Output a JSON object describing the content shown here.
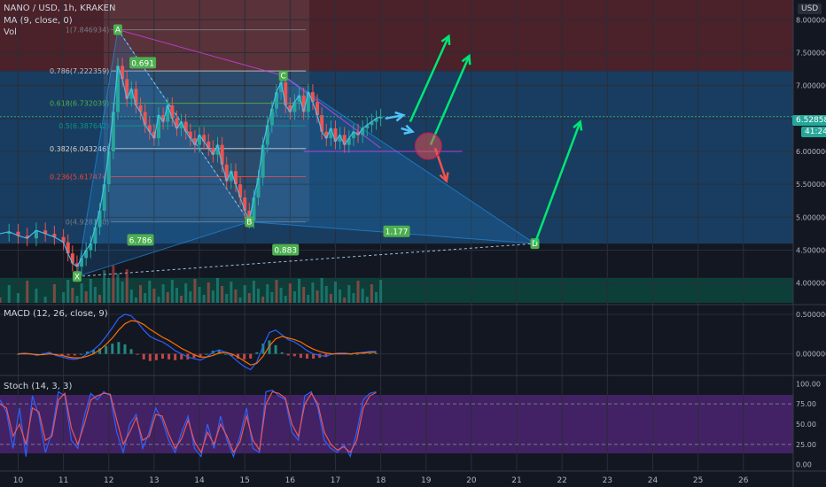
{
  "header": {
    "symbol": "NANO / USD, 1h, KRAKEN",
    "ma_label": "MA (9, close, 0)",
    "vol_label": "Vol",
    "currency": "USD",
    "macd_label": "MACD (12, 26, close, 9)",
    "stoch_label": "Stoch (14, 3, 3)"
  },
  "price_badge": {
    "value": "6.528589",
    "countdown": "41:24"
  },
  "colors": {
    "bull": "#26a69a",
    "bear": "#ef5350",
    "macd": "#2962ff",
    "signal": "#ff6d00",
    "stoch_k": "#2962ff",
    "stoch_d": "#ef5350",
    "arrow": "#00e676"
  },
  "chart_data": {
    "type": "line",
    "price_axis": {
      "ticks": [
        "8.000000",
        "7.500000",
        "7.000000",
        "6.500000",
        "6.000000",
        "5.500000",
        "5.000000",
        "4.500000",
        "4.000000"
      ],
      "values": [
        8.0,
        7.5,
        7.0,
        6.5,
        6.0,
        5.5,
        5.0,
        4.5,
        4.0
      ],
      "ylim": [
        3.7,
        8.3
      ]
    },
    "macd_axis": {
      "ticks": [
        "0.500000",
        "0.000000"
      ],
      "values": [
        0.5,
        0.0
      ],
      "ylim": [
        -0.25,
        0.6
      ]
    },
    "stoch_axis": {
      "ticks": [
        "100.00",
        "75.00",
        "50.00",
        "25.00",
        "0.00"
      ],
      "values": [
        100,
        75,
        50,
        25,
        0
      ],
      "ylim": [
        -8,
        108
      ]
    },
    "x_axis": {
      "ticks": [
        "10",
        "11",
        "12",
        "13",
        "14",
        "15",
        "16",
        "17",
        "18",
        "19",
        "20",
        "21",
        "22",
        "23",
        "24",
        "25",
        "26"
      ],
      "values": [
        10,
        11,
        12,
        13,
        14,
        15,
        16,
        17,
        18,
        19,
        20,
        21,
        22,
        23,
        24,
        25,
        26
      ],
      "xlim": [
        9.6,
        27.1
      ]
    },
    "fibonacci": [
      {
        "label": "1(7.846934)",
        "price": 7.846934,
        "color": "#787b86"
      },
      {
        "label": "0.786(7.222359)",
        "price": 7.222359,
        "color": "#c0c0c0"
      },
      {
        "label": "0.618(6.732039)",
        "price": 6.732039,
        "color": "#4caf50"
      },
      {
        "label": "0.5(6.387642)",
        "price": 6.387642,
        "color": "#089981"
      },
      {
        "label": "0.382(6.043246)",
        "price": 6.043246,
        "color": "#d1d4dc"
      },
      {
        "label": "0.236(5.617474)",
        "price": 5.617474,
        "color": "#f44336"
      },
      {
        "label": "0(4.928360)",
        "price": 4.92836,
        "color": "#787b86"
      }
    ],
    "pattern_points": [
      {
        "label": "X",
        "x": 11.3,
        "price": 4.1
      },
      {
        "label": "A",
        "x": 12.2,
        "price": 7.85
      },
      {
        "label": "B",
        "x": 15.1,
        "price": 4.93
      },
      {
        "label": "C",
        "x": 15.85,
        "price": 7.15
      },
      {
        "label": "D",
        "x": 21.4,
        "price": 4.6
      }
    ],
    "ratios": [
      {
        "label": "0.691",
        "x": 12.75,
        "price": 7.34
      },
      {
        "label": "6.786",
        "x": 12.7,
        "price": 4.65
      },
      {
        "label": "1.177",
        "x": 18.35,
        "price": 4.78
      },
      {
        "label": "0.883",
        "x": 15.9,
        "price": 4.5
      }
    ],
    "price_series": {
      "name": "",
      "x": [
        9.6,
        9.8,
        10.0,
        10.2,
        10.4,
        10.6,
        10.8,
        11.0,
        11.1,
        11.2,
        11.3,
        11.4,
        11.5,
        11.6,
        11.7,
        11.8,
        11.9,
        12.0,
        12.1,
        12.2,
        12.3,
        12.4,
        12.5,
        12.6,
        12.7,
        12.8,
        12.9,
        13.0,
        13.1,
        13.2,
        13.3,
        13.4,
        13.5,
        13.6,
        13.7,
        13.8,
        13.9,
        14.0,
        14.1,
        14.2,
        14.3,
        14.4,
        14.5,
        14.6,
        14.7,
        14.8,
        14.9,
        15.0,
        15.1,
        15.2,
        15.3,
        15.4,
        15.5,
        15.6,
        15.7,
        15.8,
        15.9,
        16.0,
        16.1,
        16.2,
        16.3,
        16.4,
        16.5,
        16.6,
        16.7,
        16.8,
        16.9,
        17.0,
        17.1,
        17.2,
        17.3,
        17.4,
        17.5,
        17.6,
        17.7,
        17.8,
        17.9,
        18.0
      ],
      "values": [
        4.75,
        4.78,
        4.72,
        4.68,
        4.8,
        4.75,
        4.7,
        4.62,
        4.45,
        4.3,
        4.25,
        4.38,
        4.5,
        4.6,
        4.85,
        5.1,
        5.5,
        6.0,
        6.6,
        7.3,
        7.1,
        6.8,
        6.95,
        6.7,
        6.6,
        6.4,
        6.3,
        6.2,
        6.55,
        6.45,
        6.7,
        6.5,
        6.35,
        6.45,
        6.3,
        6.2,
        6.1,
        6.25,
        6.15,
        6.05,
        5.95,
        6.1,
        5.8,
        5.55,
        5.7,
        5.5,
        5.3,
        5.1,
        4.95,
        5.3,
        5.6,
        6.1,
        6.4,
        6.65,
        6.9,
        7.05,
        6.7,
        6.6,
        6.75,
        6.85,
        6.6,
        6.9,
        6.75,
        6.55,
        6.3,
        6.2,
        6.35,
        6.15,
        6.25,
        6.1,
        6.2,
        6.3,
        6.25,
        6.35,
        6.4,
        6.45,
        6.5,
        6.53
      ]
    },
    "macd_series": [
      {
        "name": "",
        "values": [
          0.0,
          0.01,
          0.0,
          -0.02,
          0.0,
          0.02,
          -0.02,
          -0.04,
          -0.06,
          -0.07,
          -0.05,
          0.0,
          0.05,
          0.12,
          0.22,
          0.33,
          0.45,
          0.5,
          0.48,
          0.4,
          0.3,
          0.22,
          0.18,
          0.15,
          0.1,
          0.04,
          0.0,
          -0.04,
          -0.06,
          -0.08,
          -0.04,
          0.02,
          0.05,
          0.02,
          -0.03,
          -0.1,
          -0.16,
          -0.2,
          -0.1,
          0.1,
          0.27,
          0.3,
          0.24,
          0.18,
          0.15,
          0.1,
          0.04,
          0.0,
          -0.02,
          -0.03,
          0.0,
          0.01,
          0.01,
          0.0,
          0.01,
          0.02,
          0.03,
          0.03
        ]
      },
      {
        "name": "",
        "values": [
          0.0,
          0.0,
          0.0,
          -0.01,
          -0.01,
          0.0,
          -0.01,
          -0.02,
          -0.04,
          -0.05,
          -0.05,
          -0.03,
          0.0,
          0.05,
          0.12,
          0.2,
          0.3,
          0.38,
          0.42,
          0.41,
          0.37,
          0.31,
          0.26,
          0.21,
          0.17,
          0.12,
          0.07,
          0.03,
          -0.01,
          -0.04,
          -0.04,
          -0.02,
          0.01,
          0.02,
          0.0,
          -0.04,
          -0.09,
          -0.14,
          -0.12,
          -0.03,
          0.1,
          0.19,
          0.22,
          0.2,
          0.18,
          0.15,
          0.1,
          0.06,
          0.03,
          0.01,
          0.0,
          0.0,
          0.0,
          0.0,
          0.01,
          0.01,
          0.02,
          0.02
        ]
      }
    ],
    "stoch_series": [
      {
        "name": "",
        "values": [
          80,
          65,
          20,
          70,
          10,
          85,
          60,
          15,
          40,
          90,
          85,
          30,
          20,
          60,
          88,
          80,
          90,
          85,
          40,
          15,
          50,
          62,
          20,
          40,
          70,
          55,
          30,
          15,
          40,
          60,
          20,
          10,
          50,
          20,
          60,
          30,
          10,
          35,
          70,
          20,
          15,
          90,
          92,
          85,
          80,
          40,
          30,
          85,
          90,
          70,
          30,
          20,
          15,
          25,
          10,
          40,
          80,
          88,
          90
        ]
      },
      {
        "name": "",
        "values": [
          75,
          70,
          35,
          50,
          25,
          70,
          65,
          30,
          35,
          80,
          88,
          45,
          25,
          50,
          80,
          85,
          88,
          87,
          55,
          25,
          40,
          58,
          30,
          35,
          62,
          60,
          38,
          20,
          32,
          55,
          28,
          15,
          40,
          25,
          50,
          35,
          15,
          28,
          60,
          30,
          18,
          75,
          90,
          88,
          82,
          50,
          35,
          75,
          88,
          75,
          40,
          25,
          18,
          22,
          15,
          30,
          70,
          85,
          89
        ]
      }
    ]
  }
}
